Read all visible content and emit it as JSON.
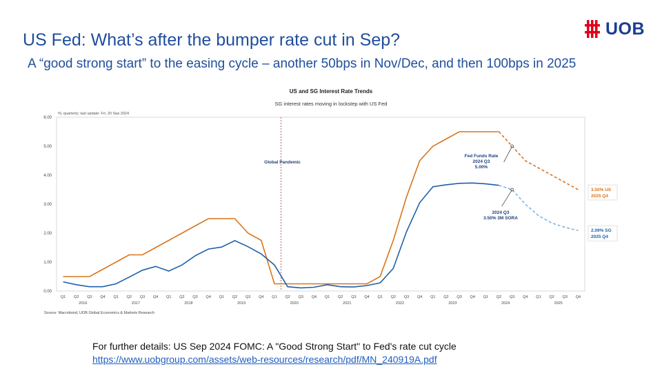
{
  "slide": {
    "title": "US Fed: What’s after the bumper rate cut in Sep?",
    "subtitle": "A “good strong start” to the easing cycle – another 50bps in Nov/Dec, and then 100bps in 2025",
    "logo_text": "UOB",
    "logo_color": "#e2001a",
    "footer_text": "For further details: US Sep 2024 FOMC: A \"Good Strong Start\" to Fed's rate cut cycle",
    "footer_link": "https://www.uobgroup.com/assets/web-resources/research/pdf/MN_240919A.pdf"
  },
  "chart_data": {
    "type": "line",
    "title": "US and SG Interest Rate Trends",
    "subtitle": "SG interest rates moving in lockstep with US Fed",
    "note": "%; quarterly; last update: Fri, 20 Sep 2024",
    "source": "Source: Macrobond, UOB Global Economics & Markets Research",
    "ylim": [
      0,
      6
    ],
    "yticks": [
      "0.00",
      "1.00",
      "2.00",
      "3.00",
      "4.00",
      "5.00",
      "6.00"
    ],
    "grid": false,
    "quarter_labels": [
      "Q1",
      "Q2",
      "Q3",
      "Q4"
    ],
    "years": [
      "2016",
      "2017",
      "2018",
      "2019",
      "2020",
      "2021",
      "2022",
      "2023",
      "2024",
      "2025"
    ],
    "series": [
      {
        "color": "#d9731a",
        "forecast_from": 33,
        "values": [
          0.5,
          0.5,
          0.5,
          0.75,
          1.0,
          1.25,
          1.25,
          1.5,
          1.75,
          2.0,
          2.25,
          2.5,
          2.5,
          2.5,
          2.0,
          1.75,
          0.25,
          0.25,
          0.25,
          0.25,
          0.25,
          0.25,
          0.25,
          0.25,
          0.5,
          1.75,
          3.25,
          4.5,
          5.0,
          5.25,
          5.5,
          5.5,
          5.5,
          5.5,
          5.0,
          4.5,
          4.25,
          4.0,
          3.75,
          3.5
        ],
        "end_label": [
          "3.50% US",
          "2025 Q4"
        ]
      },
      {
        "color": "#1f5fa8",
        "forecast_color": "#7fb2e0",
        "forecast_from": 33,
        "values": [
          0.32,
          0.22,
          0.15,
          0.15,
          0.25,
          0.48,
          0.72,
          0.85,
          0.69,
          0.9,
          1.22,
          1.45,
          1.52,
          1.74,
          1.53,
          1.28,
          0.9,
          0.15,
          0.11,
          0.13,
          0.22,
          0.15,
          0.14,
          0.19,
          0.28,
          0.78,
          2.05,
          3.05,
          3.6,
          3.67,
          3.72,
          3.73,
          3.7,
          3.65,
          3.5,
          3.0,
          2.6,
          2.35,
          2.2,
          2.09
        ],
        "end_label": [
          "2.09% SG",
          "2025 Q4"
        ]
      }
    ],
    "annotations": {
      "pandemic": "Global Pandemic",
      "fed": [
        "Fed Funds Rate",
        "2024 Q3",
        "5.00%"
      ],
      "sora": [
        "2024 Q3",
        "3.50% 3M SORA"
      ]
    }
  }
}
